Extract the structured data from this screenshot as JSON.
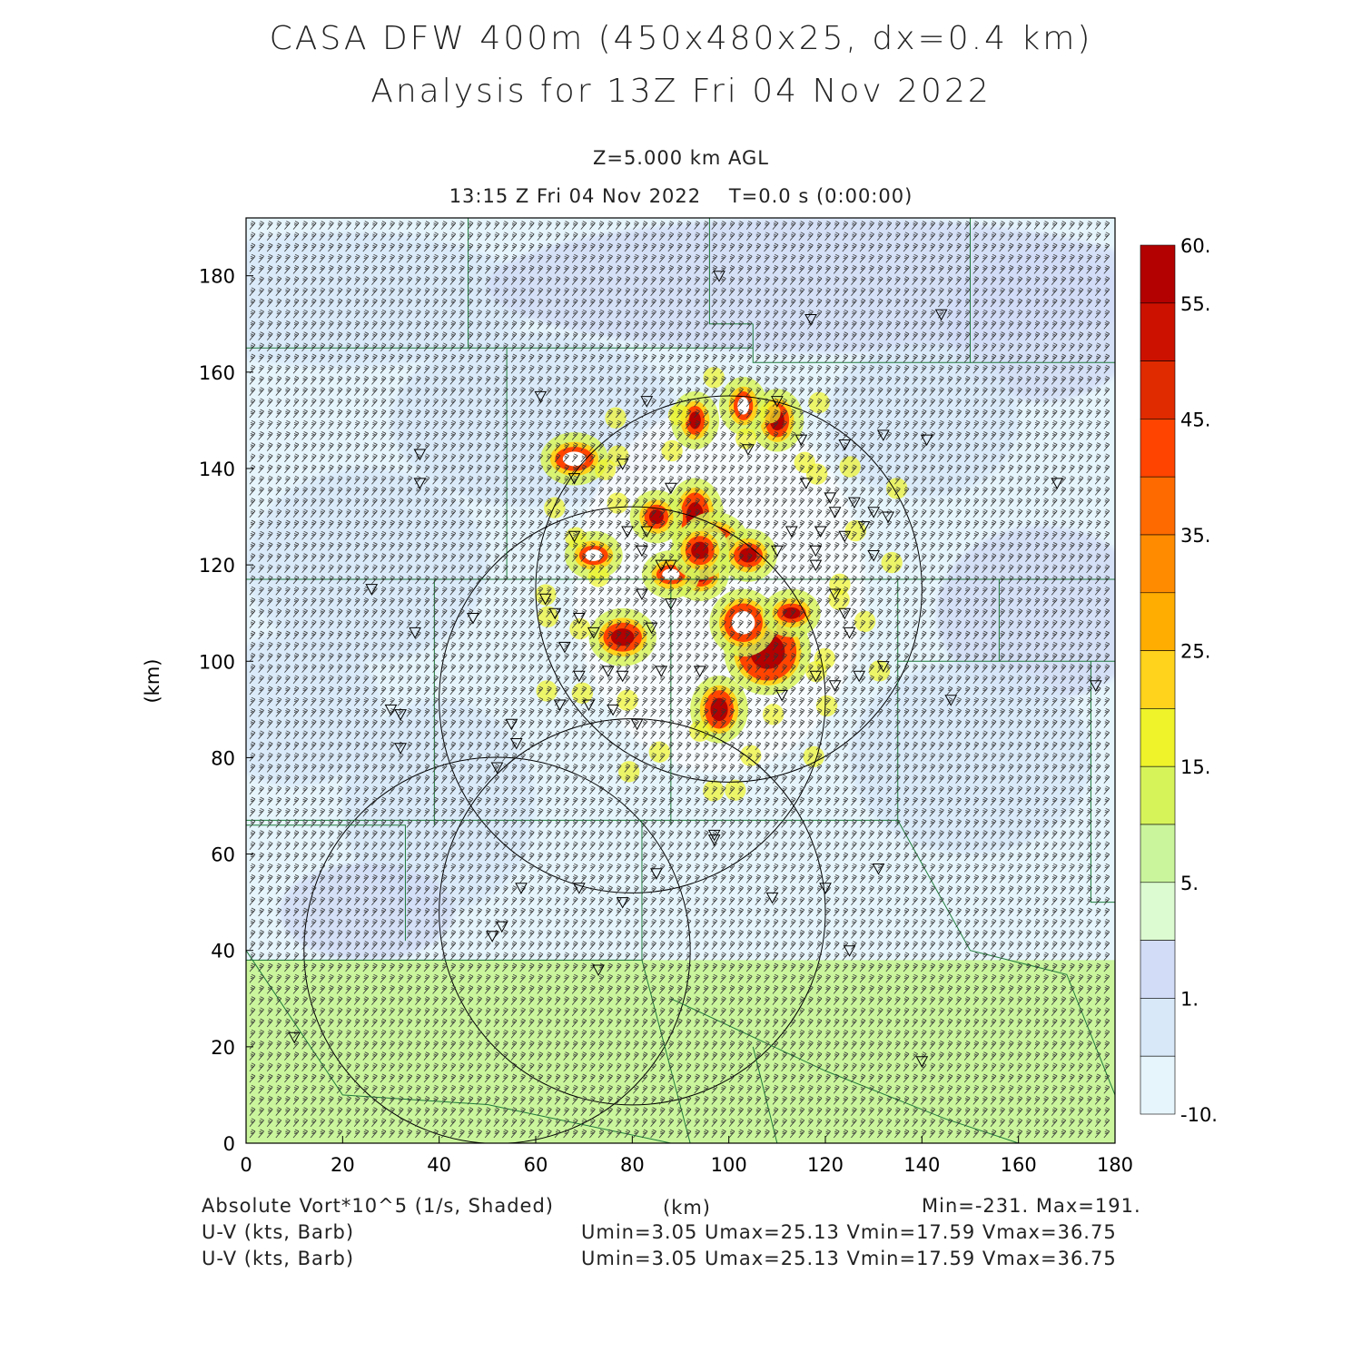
{
  "title": "CASA DFW 400m (450x480x25, dx=0.4 km)",
  "subtitle": "Analysis for 13Z Fri 04 Nov 2022",
  "level_label": "Z=5.000 km AGL",
  "time_label": "13:15 Z Fri 04 Nov 2022    T=0.0 s (0:00:00)",
  "footer": {
    "field1": "Absolute Vort*10^5 (1/s, Shaded)",
    "field2": "U-V (kts, Barb)",
    "field3": "U-V (kts, Barb)",
    "xunit": "(km)",
    "minmax": "Min=-231. Max=191.",
    "uv_stats1": "Umin=3.05 Umax=25.13 Vmin=17.59 Vmax=36.75",
    "uv_stats2": "Umin=3.05 Umax=25.13 Vmin=17.59 Vmax=36.75"
  },
  "chart_data": {
    "type": "heatmap",
    "xlabel": "(km)",
    "ylabel": "(km)",
    "xlim": [
      0,
      180
    ],
    "ylim": [
      0,
      192
    ],
    "x_ticks": [
      "0",
      "20",
      "40",
      "60",
      "80",
      "100",
      "120",
      "140",
      "160",
      "180"
    ],
    "y_ticks": [
      "0",
      "20",
      "40",
      "60",
      "80",
      "100",
      "120",
      "140",
      "160",
      "180"
    ],
    "colorbar": {
      "labels": [
        "60.",
        "55.",
        "45.",
        "35.",
        "25.",
        "15.",
        "5.",
        "1.",
        "-10."
      ],
      "colors": [
        "#b30000",
        "#cc1100",
        "#e02a00",
        "#ff4400",
        "#ff6a00",
        "#ff8c00",
        "#ffad00",
        "#ffd21c",
        "#eef32a",
        "#d7f35a",
        "#caf59c",
        "#dcfbd0",
        "#d2dcf7",
        "#d8e8f9",
        "#e6f5fc"
      ]
    },
    "background_value_range": [
      -10,
      1
    ],
    "southern_band": {
      "y_range": [
        0,
        38
      ],
      "class": "5 to 15"
    },
    "vorticity_max_region": {
      "x": [
        85,
        115
      ],
      "y": [
        85,
        135
      ],
      "peak": 60
    },
    "field_min": -231,
    "field_max": 191,
    "radar_range_rings": [
      {
        "cx": 100,
        "cy": 115,
        "r": 40
      },
      {
        "cx": 80,
        "cy": 92,
        "r": 40
      },
      {
        "cx": 52,
        "cy": 40,
        "r": 40
      },
      {
        "cx": 80,
        "cy": 48,
        "r": 40
      }
    ],
    "wind_barbs": {
      "units": "kts",
      "u_range": [
        3.05,
        25.13
      ],
      "v_range": [
        17.59,
        36.75
      ]
    }
  }
}
